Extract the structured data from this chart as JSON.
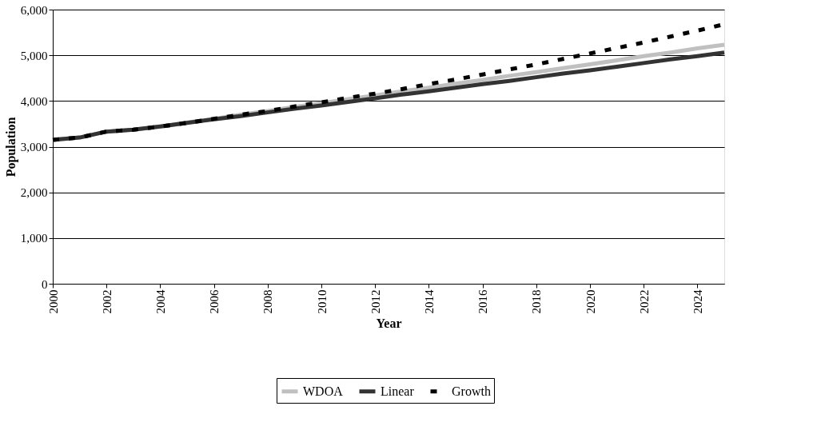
{
  "chart_data": {
    "type": "line",
    "xlabel": "Year",
    "ylabel": "Population",
    "x": [
      2000,
      2001,
      2002,
      2003,
      2004,
      2005,
      2006,
      2007,
      2008,
      2009,
      2010,
      2011,
      2012,
      2013,
      2014,
      2015,
      2016,
      2017,
      2018,
      2019,
      2020,
      2021,
      2022,
      2023,
      2024,
      2025
    ],
    "series": [
      {
        "name": "WDOA",
        "color": "#c0c0c0",
        "line_style": "solid",
        "values": [
          3150,
          3200,
          3330,
          3370,
          3440,
          3530,
          3610,
          3700,
          3780,
          3870,
          3950,
          4040,
          4120,
          4210,
          4290,
          4380,
          4460,
          4550,
          4630,
          4720,
          4800,
          4890,
          4980,
          5060,
          5150,
          5230
        ]
      },
      {
        "name": "Linear",
        "color": "#333333",
        "line_style": "solid",
        "values": [
          3150,
          3200,
          3330,
          3370,
          3440,
          3520,
          3600,
          3670,
          3750,
          3830,
          3900,
          3980,
          4060,
          4140,
          4210,
          4290,
          4370,
          4440,
          4520,
          4600,
          4670,
          4750,
          4830,
          4910,
          4980,
          5060
        ]
      },
      {
        "name": "Growth",
        "color": "#000000",
        "line_style": "dashed",
        "values": [
          3150,
          3200,
          3330,
          3370,
          3440,
          3520,
          3610,
          3700,
          3780,
          3880,
          3970,
          4070,
          4160,
          4260,
          4370,
          4470,
          4580,
          4690,
          4800,
          4920,
          5040,
          5160,
          5280,
          5410,
          5540,
          5680
        ]
      }
    ],
    "xlim": [
      2000,
      2025
    ],
    "xticks": [
      2000,
      2002,
      2004,
      2006,
      2008,
      2010,
      2012,
      2014,
      2016,
      2018,
      2020,
      2022,
      2024
    ],
    "ylim": [
      0,
      6000
    ],
    "yticks": [
      0,
      {
        "value": 1000,
        "label": "1,000"
      },
      {
        "value": 2000,
        "label": "2,000"
      },
      {
        "value": 3000,
        "label": "3,000"
      },
      {
        "value": 4000,
        "label": "4,000"
      },
      {
        "value": 5000,
        "label": "5,000"
      },
      {
        "value": 6000,
        "label": "6,000"
      }
    ],
    "grid": "y",
    "legend": "bottom",
    "marker": "none"
  }
}
